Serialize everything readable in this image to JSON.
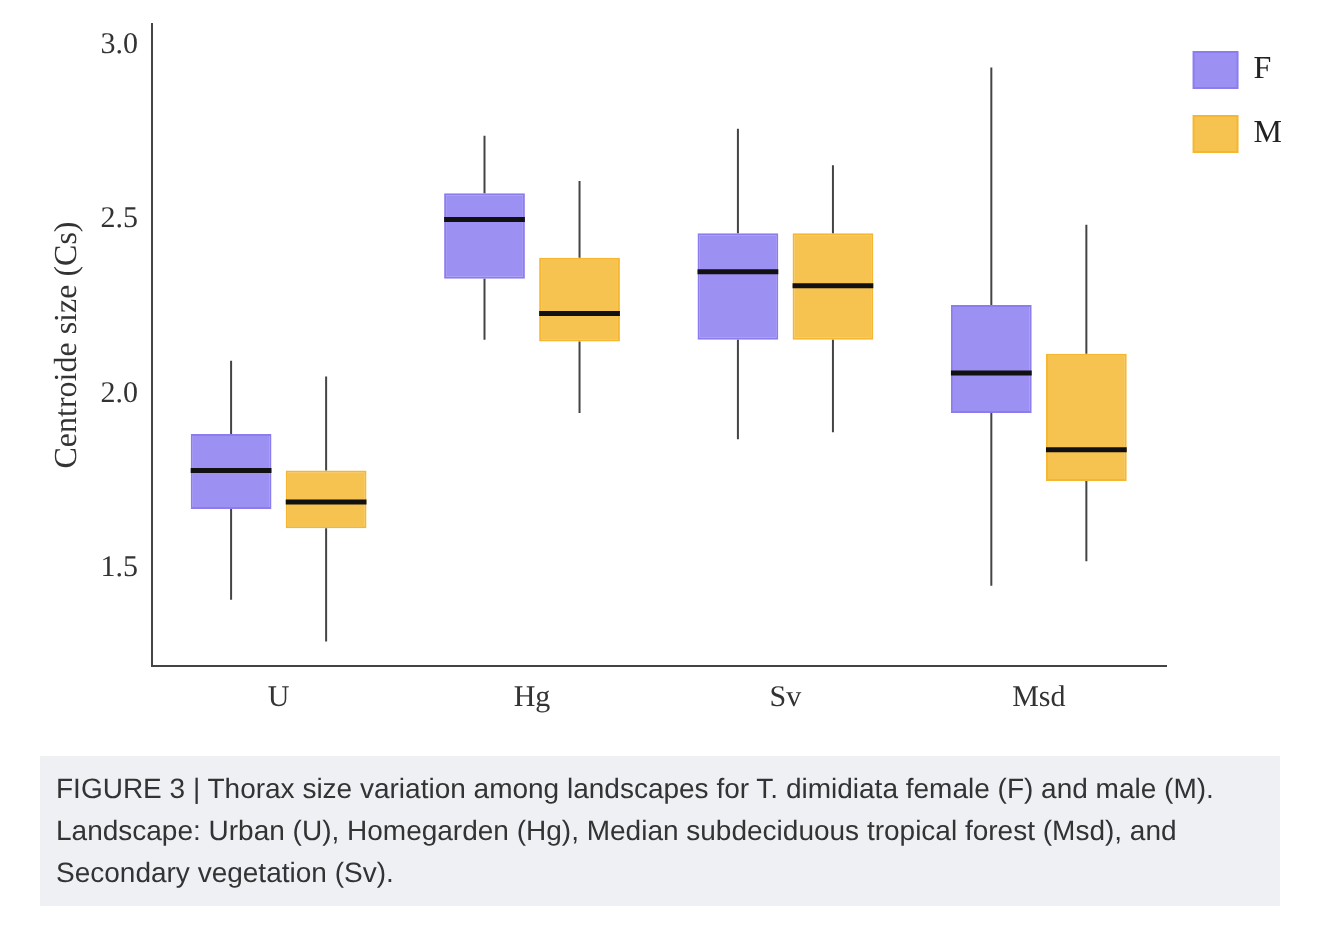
{
  "chart_data": {
    "type": "box",
    "ylabel": "Centroide size (Cs)",
    "categories": [
      "U",
      "Hg",
      "Sv",
      "Msd"
    ],
    "ylim": [
      1.22,
      3.06
    ],
    "yticks": [
      {
        "value": 1.5,
        "label": "1.5"
      },
      {
        "value": 2,
        "label": "2.0"
      },
      {
        "value": 2.5,
        "label": "2.5"
      },
      {
        "value": 3,
        "label": "3.0"
      }
    ],
    "grid": false,
    "legend": "top right",
    "series": [
      {
        "name": "F",
        "color": "#8b7cf0",
        "boxes": [
          {
            "low": 1.41,
            "q1": 1.67,
            "median": 1.78,
            "q3": 1.885,
            "high": 2.095
          },
          {
            "low": 2.155,
            "q1": 2.33,
            "median": 2.5,
            "q3": 2.575,
            "high": 2.74
          },
          {
            "low": 1.87,
            "q1": 2.155,
            "median": 2.35,
            "q3": 2.46,
            "high": 2.76
          },
          {
            "low": 1.45,
            "q1": 1.945,
            "median": 2.06,
            "q3": 2.255,
            "high": 2.935
          }
        ]
      },
      {
        "name": "M",
        "color": "#f5b731",
        "boxes": [
          {
            "low": 1.29,
            "q1": 1.615,
            "median": 1.69,
            "q3": 1.78,
            "high": 2.05
          },
          {
            "low": 1.945,
            "q1": 2.15,
            "median": 2.23,
            "q3": 2.39,
            "high": 2.61
          },
          {
            "low": 1.89,
            "q1": 2.155,
            "median": 2.31,
            "q3": 2.46,
            "high": 2.655
          },
          {
            "low": 1.52,
            "q1": 1.75,
            "median": 1.84,
            "q3": 2.115,
            "high": 2.485
          }
        ]
      }
    ],
    "annotations": [
      "FIGURE 3 | Thorax size variation among landscapes for T. dimidiata female (F) and male (M). Landscape: Urban (U), Homegarden (Hg), Median subdeciduous tropical forest (Msd), and Secondary vegetation (Sv)."
    ]
  }
}
